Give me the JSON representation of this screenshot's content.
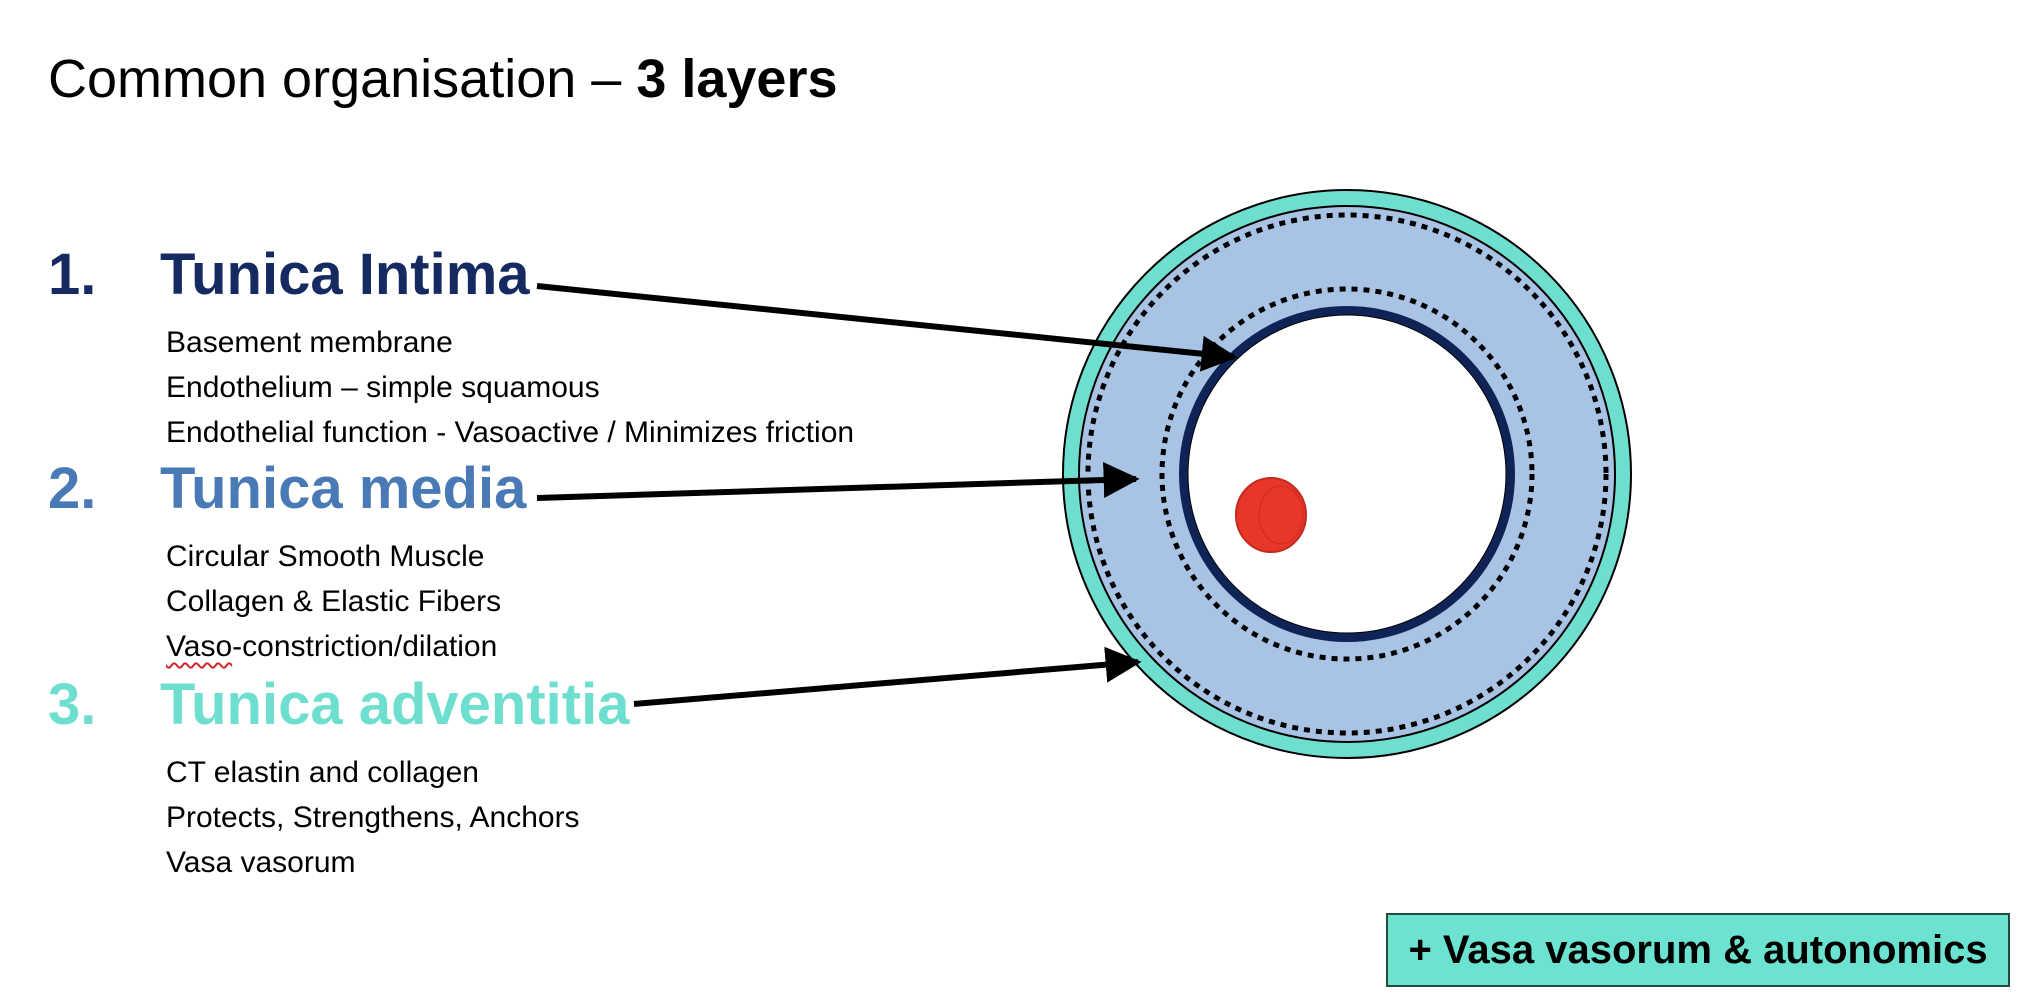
{
  "title": {
    "normal": "Common organisation – ",
    "bold": "3 layers"
  },
  "layers": [
    {
      "number": "1.",
      "name": "Tunica Intima",
      "color": "#142a60",
      "bullets": [
        "Basement membrane",
        "Endothelium – simple squamous",
        "Endothelial function - Vasoactive / Minimizes friction"
      ]
    },
    {
      "number": "2.",
      "name": "Tunica media",
      "color": "#4a7ab5",
      "bullets": [
        "Circular Smooth Muscle",
        "Collagen & Elastic Fibers",
        "-constriction/dilation"
      ],
      "bullet_prefix_underlined": "Vaso"
    },
    {
      "number": "3.",
      "name": "Tunica adventitia",
      "color": "#6edfcf",
      "bullets": [
        "CT elastin and collagen",
        "Protects, Strengthens, Anchors",
        "Vasa vasorum"
      ]
    }
  ],
  "footer_box": {
    "text": "+ Vasa vasorum & autonomics",
    "background": "#6be3d0"
  },
  "diagram_colors": {
    "adventitia": "#6edfcf",
    "media": "#a9c3e4",
    "intima": "#0f2356",
    "lumen": "#ffffff",
    "red_blood_cell": "#e8372a"
  }
}
